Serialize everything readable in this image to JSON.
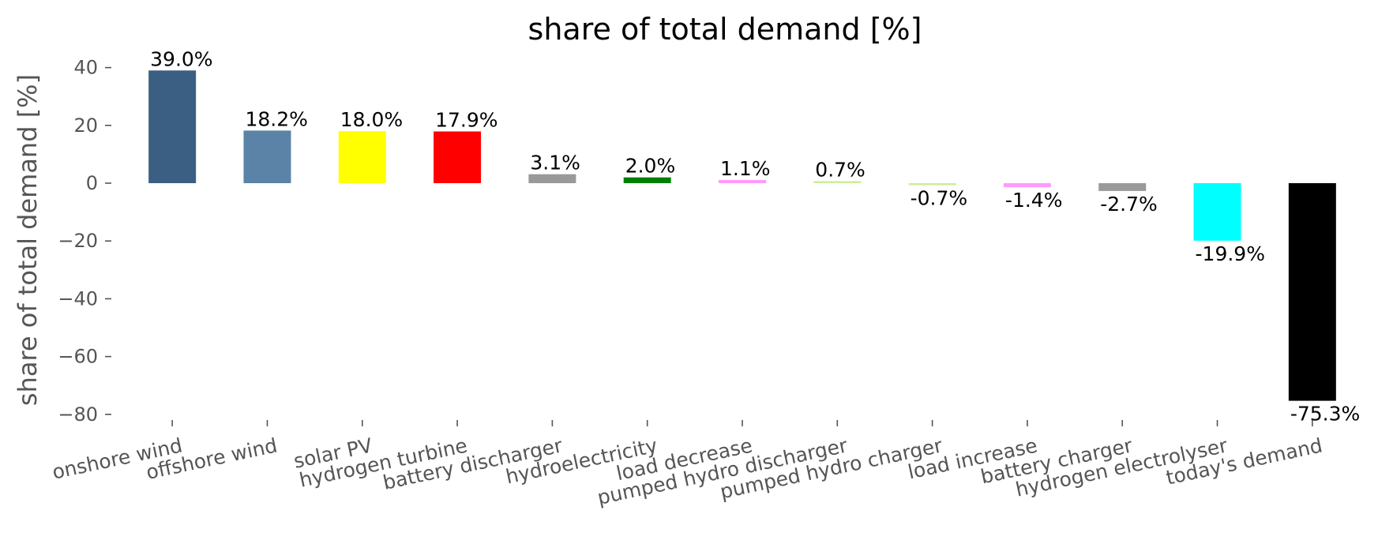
{
  "chart_data": {
    "type": "bar",
    "title": "share of total demand [%]",
    "ylabel": "share of total demand [%]",
    "xlabel": "",
    "ylim": [
      -84,
      45
    ],
    "yticks": [
      40,
      20,
      0,
      -20,
      -40,
      -60,
      -80
    ],
    "ytick_labels": [
      "40",
      "20",
      "0",
      "−20",
      "−40",
      "−60",
      "−80"
    ],
    "grid": false,
    "categories": [
      "onshore wind",
      "offshore wind",
      "solar PV",
      "hydrogen turbine",
      "battery discharger",
      "hydroelectricity",
      "load decrease",
      "pumped hydro discharger",
      "pumped hydro charger",
      "load increase",
      "battery charger",
      "hydrogen electrolyser",
      "today's demand"
    ],
    "values": [
      39.0,
      18.2,
      18.0,
      17.9,
      3.1,
      2.0,
      1.1,
      0.7,
      -0.7,
      -1.4,
      -2.7,
      -19.9,
      -75.3
    ],
    "value_labels": [
      "39.0%",
      "18.2%",
      "18.0%",
      "17.9%",
      "3.1%",
      "2.0%",
      "1.1%",
      "0.7%",
      "-0.7%",
      "-1.4%",
      "-2.7%",
      "-19.9%",
      "-75.3%"
    ],
    "colors": [
      "#3b5f82",
      "#5b83a8",
      "#ffff00",
      "#ff0000",
      "#999999",
      "#008000",
      "#ff99ff",
      "#ccee99",
      "#ccee99",
      "#ff99ff",
      "#999999",
      "#00ffff",
      "#000000"
    ]
  }
}
